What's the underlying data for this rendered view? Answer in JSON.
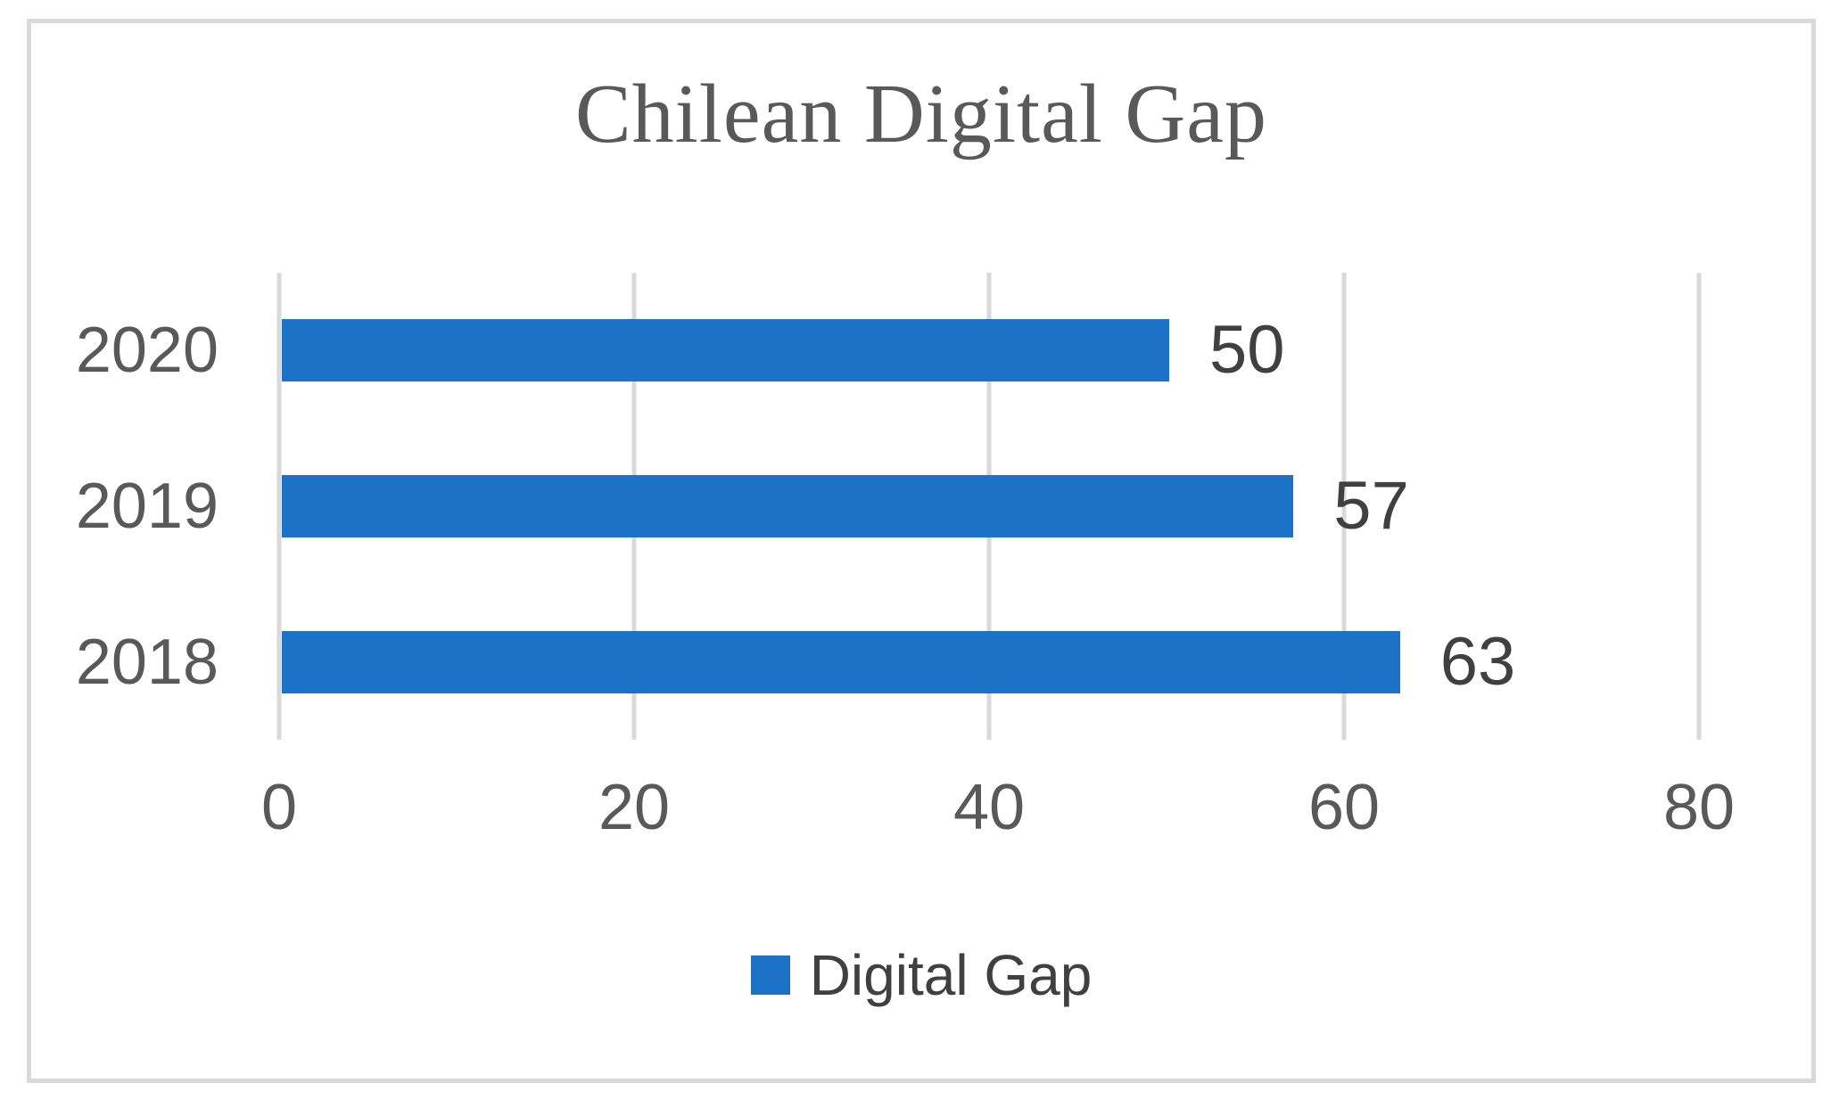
{
  "chart_data": {
    "type": "bar",
    "orientation": "horizontal",
    "title": "Chilean Digital Gap",
    "categories": [
      "2020",
      "2019",
      "2018"
    ],
    "values": [
      50,
      57,
      63
    ],
    "series": [
      {
        "name": "Digital Gap",
        "values": [
          50,
          57,
          63
        ]
      }
    ],
    "legend_label": "Digital Gap",
    "legend_position": "bottom",
    "xlim": [
      0,
      80
    ],
    "xticks": [
      0,
      20,
      40,
      60,
      80
    ],
    "grid": "vertical-only",
    "data_labels_shown": true,
    "colors": {
      "bar": "#1C72C6",
      "gridline": "#D9D9D9",
      "frame_border": "#D9D9D9",
      "title_text": "#595959",
      "axis_text": "#595959",
      "data_label_text": "#404040",
      "legend_text": "#404040"
    }
  }
}
